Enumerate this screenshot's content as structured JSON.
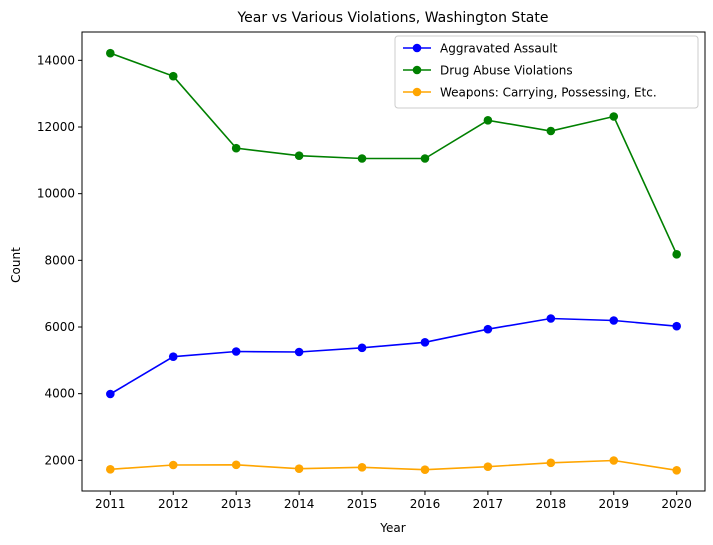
{
  "chart_data": {
    "type": "line",
    "title": "Year vs Various Violations, Washington State",
    "xlabel": "Year",
    "ylabel": "Count",
    "x": [
      2011,
      2012,
      2013,
      2014,
      2015,
      2016,
      2017,
      2018,
      2019,
      2020
    ],
    "xlim": [
      2010.55,
      2020.45
    ],
    "ylim": [
      1080,
      14850
    ],
    "yticks": [
      2000,
      4000,
      6000,
      8000,
      10000,
      12000,
      14000
    ],
    "grid": false,
    "legend_position": "top-right",
    "series": [
      {
        "name": "Aggravated Assault",
        "color": "#0000ff",
        "values": [
          3990,
          5110,
          5265,
          5250,
          5375,
          5540,
          5935,
          6255,
          6195,
          6025
        ]
      },
      {
        "name": "Drug Abuse Violations",
        "color": "#008000",
        "values": [
          14215,
          13525,
          11365,
          11140,
          11055,
          11055,
          12200,
          11880,
          12315,
          8180
        ]
      },
      {
        "name": "Weapons: Carrying, Possessing, Etc.",
        "color": "#ffa500",
        "values": [
          1730,
          1860,
          1865,
          1750,
          1790,
          1720,
          1810,
          1925,
          1995,
          1700
        ]
      }
    ]
  }
}
